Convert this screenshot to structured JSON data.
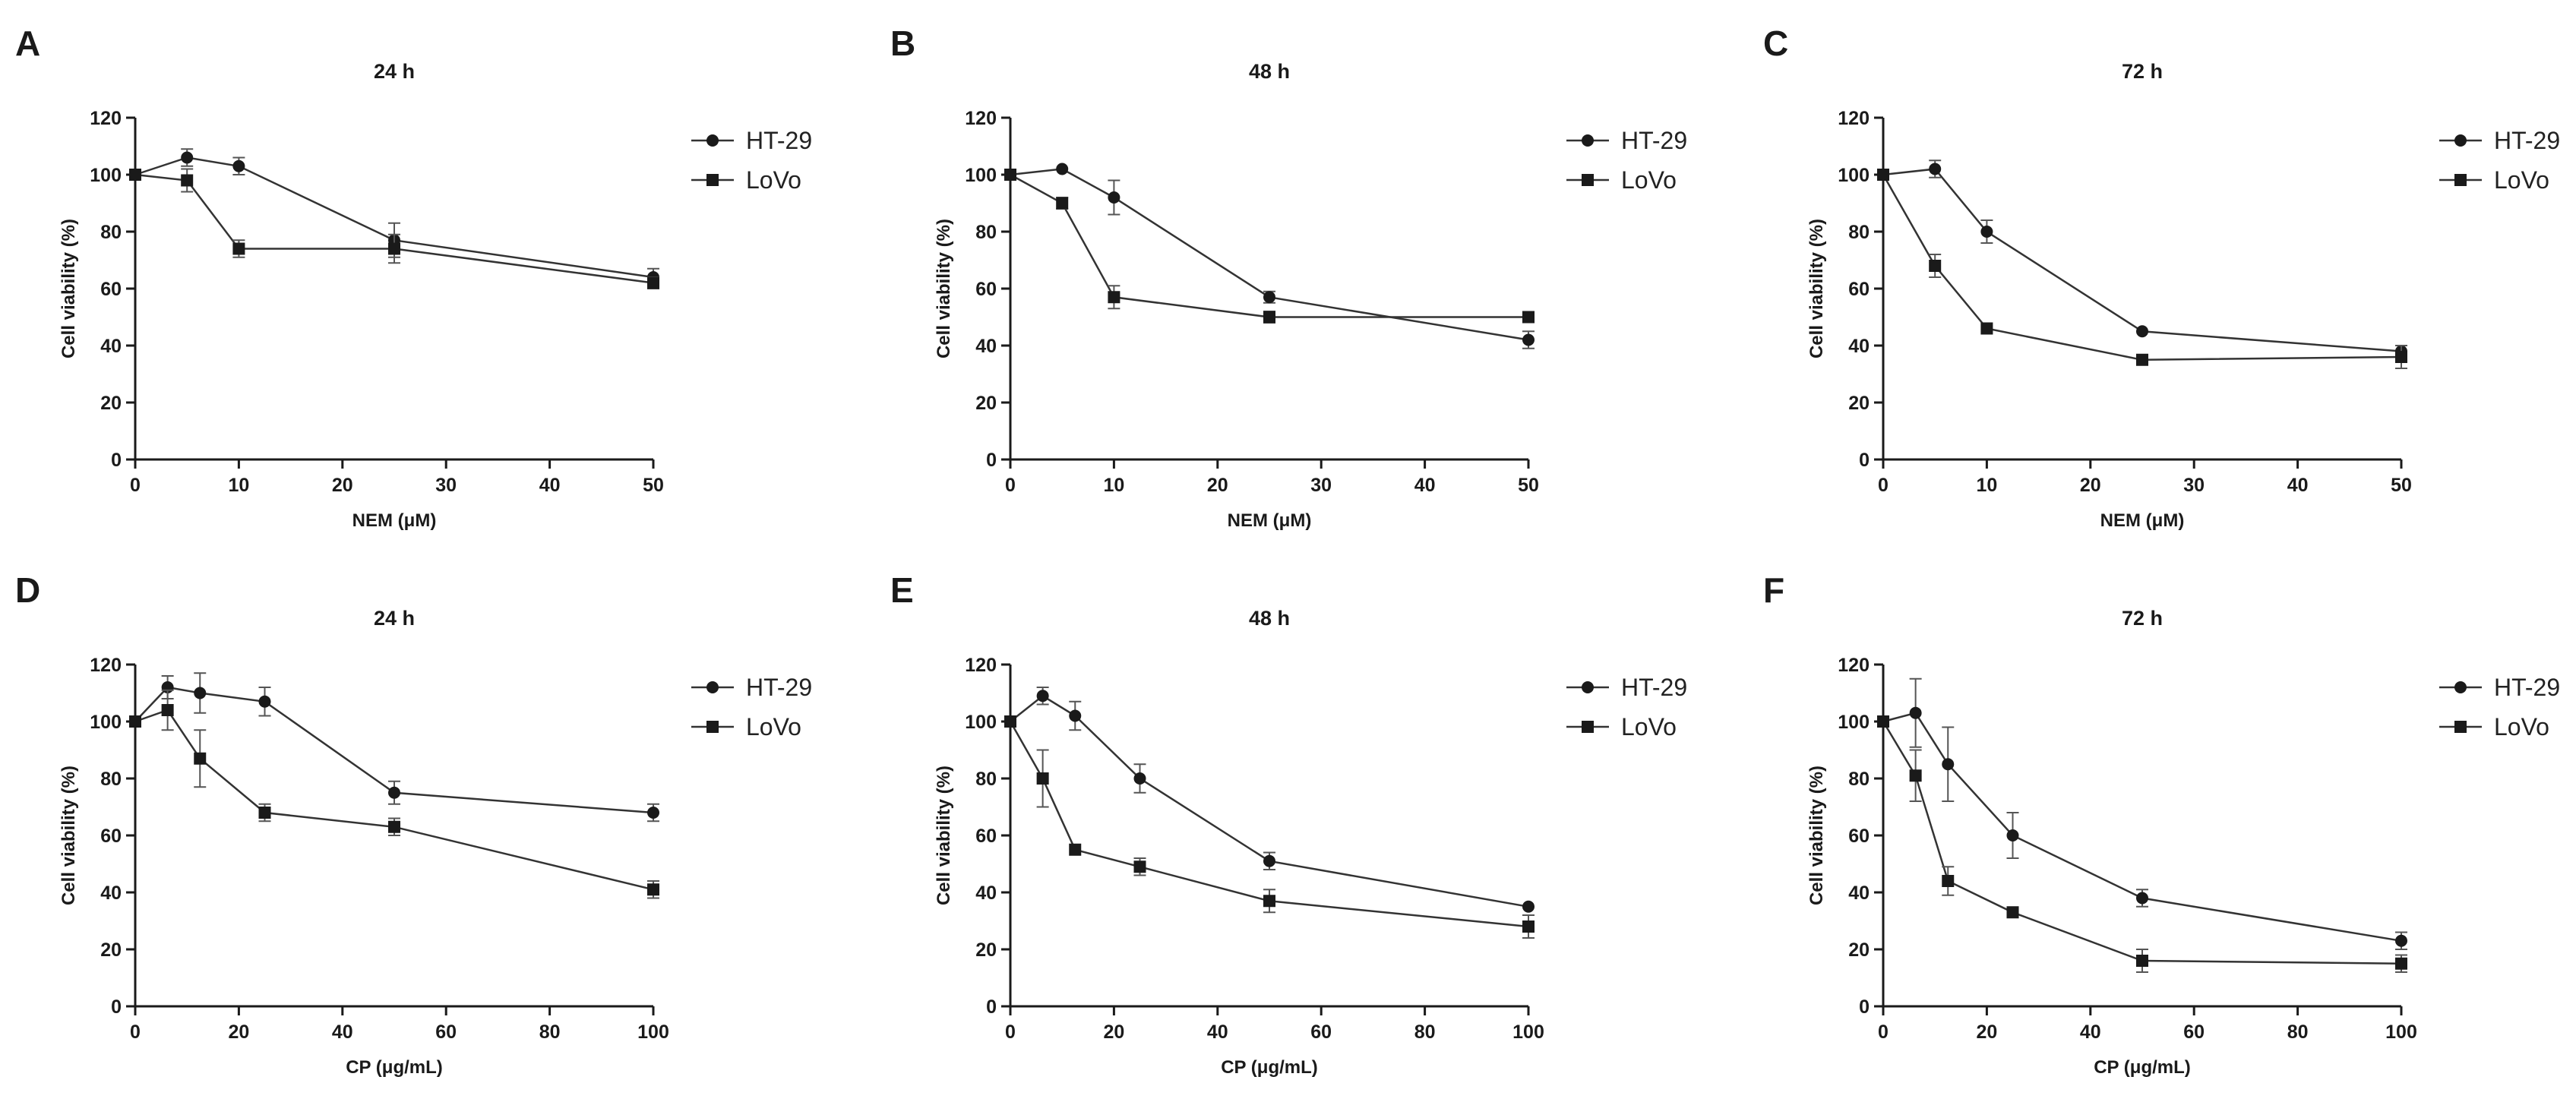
{
  "colors": {
    "line": "#333333",
    "marker": "#1a1a1a",
    "error_bar": "#555555",
    "axis": "#1a1a1a"
  },
  "chart_data": [
    {
      "panel": "A",
      "type": "line",
      "title": "24 h",
      "xlabel": "NEM (μM)",
      "ylabel": "Cell viability (%)",
      "xlim": [
        0,
        50
      ],
      "ylim": [
        0,
        120
      ],
      "xticks": [
        "0",
        "10",
        "20",
        "30",
        "40",
        "50"
      ],
      "yticks": [
        "0",
        "20",
        "40",
        "60",
        "80",
        "100",
        "120"
      ],
      "legend_position": "right",
      "series": [
        {
          "name": "HT-29",
          "marker": "circle",
          "x": [
            0,
            5,
            10,
            25,
            50
          ],
          "y": [
            100,
            106,
            103,
            77,
            64
          ],
          "err": [
            1,
            3,
            3,
            6,
            3
          ]
        },
        {
          "name": "LoVo",
          "marker": "square",
          "x": [
            0,
            5,
            10,
            25,
            50
          ],
          "y": [
            100,
            98,
            74,
            74,
            62
          ],
          "err": [
            1,
            4,
            3,
            5,
            2
          ]
        }
      ]
    },
    {
      "panel": "B",
      "type": "line",
      "title": "48 h",
      "xlabel": "NEM (μM)",
      "ylabel": "Cell viability (%)",
      "xlim": [
        0,
        50
      ],
      "ylim": [
        0,
        120
      ],
      "xticks": [
        "0",
        "10",
        "20",
        "30",
        "40",
        "50"
      ],
      "yticks": [
        "0",
        "20",
        "40",
        "60",
        "80",
        "100",
        "120"
      ],
      "legend_position": "right",
      "series": [
        {
          "name": "HT-29",
          "marker": "circle",
          "x": [
            0,
            5,
            10,
            25,
            50
          ],
          "y": [
            100,
            102,
            92,
            57,
            42
          ],
          "err": [
            1,
            1,
            6,
            2,
            3
          ]
        },
        {
          "name": "LoVo",
          "marker": "square",
          "x": [
            0,
            5,
            10,
            25,
            50
          ],
          "y": [
            100,
            90,
            57,
            50,
            50
          ],
          "err": [
            1,
            2,
            4,
            2,
            1
          ]
        }
      ]
    },
    {
      "panel": "C",
      "type": "line",
      "title": "72 h",
      "xlabel": "NEM (μM)",
      "ylabel": "Cell viability (%)",
      "xlim": [
        0,
        50
      ],
      "ylim": [
        0,
        120
      ],
      "xticks": [
        "0",
        "10",
        "20",
        "30",
        "40",
        "50"
      ],
      "yticks": [
        "0",
        "20",
        "40",
        "60",
        "80",
        "100",
        "120"
      ],
      "legend_position": "right",
      "series": [
        {
          "name": "HT-29",
          "marker": "circle",
          "x": [
            0,
            5,
            10,
            25,
            50
          ],
          "y": [
            100,
            102,
            80,
            45,
            38
          ],
          "err": [
            1,
            3,
            4,
            1,
            2
          ]
        },
        {
          "name": "LoVo",
          "marker": "square",
          "x": [
            0,
            5,
            10,
            25,
            50
          ],
          "y": [
            100,
            68,
            46,
            35,
            36
          ],
          "err": [
            1,
            4,
            1,
            1,
            4
          ]
        }
      ]
    },
    {
      "panel": "D",
      "type": "line",
      "title": "24 h",
      "xlabel": "CP (μg/mL)",
      "ylabel": "Cell viability (%)",
      "xlim": [
        0,
        100
      ],
      "ylim": [
        0,
        120
      ],
      "xticks": [
        "0",
        "20",
        "40",
        "60",
        "80",
        "100"
      ],
      "yticks": [
        "0",
        "20",
        "40",
        "60",
        "80",
        "100",
        "120"
      ],
      "legend_position": "right",
      "series": [
        {
          "name": "HT-29",
          "marker": "circle",
          "x": [
            0,
            6.25,
            12.5,
            25,
            50,
            100
          ],
          "y": [
            100,
            112,
            110,
            107,
            75,
            68
          ],
          "err": [
            1,
            4,
            7,
            5,
            4,
            3
          ]
        },
        {
          "name": "LoVo",
          "marker": "square",
          "x": [
            0,
            6.25,
            12.5,
            25,
            50,
            100
          ],
          "y": [
            100,
            104,
            87,
            68,
            63,
            41
          ],
          "err": [
            1,
            7,
            10,
            3,
            3,
            3
          ]
        }
      ]
    },
    {
      "panel": "E",
      "type": "line",
      "title": "48 h",
      "xlabel": "CP (μg/mL)",
      "ylabel": "Cell viability (%)",
      "xlim": [
        0,
        100
      ],
      "ylim": [
        0,
        120
      ],
      "xticks": [
        "0",
        "20",
        "40",
        "60",
        "80",
        "100"
      ],
      "yticks": [
        "0",
        "20",
        "40",
        "60",
        "80",
        "100",
        "120"
      ],
      "legend_position": "right",
      "series": [
        {
          "name": "HT-29",
          "marker": "circle",
          "x": [
            0,
            6.25,
            12.5,
            25,
            50,
            100
          ],
          "y": [
            100,
            109,
            102,
            80,
            51,
            35
          ],
          "err": [
            1,
            3,
            5,
            5,
            3,
            1
          ]
        },
        {
          "name": "LoVo",
          "marker": "square",
          "x": [
            0,
            6.25,
            12.5,
            25,
            50,
            100
          ],
          "y": [
            100,
            80,
            55,
            49,
            37,
            28
          ],
          "err": [
            1,
            10,
            1,
            3,
            4,
            4
          ]
        }
      ]
    },
    {
      "panel": "F",
      "type": "line",
      "title": "72 h",
      "xlabel": "CP (μg/mL)",
      "ylabel": "Cell viability (%)",
      "xlim": [
        0,
        100
      ],
      "ylim": [
        0,
        120
      ],
      "xticks": [
        "0",
        "20",
        "40",
        "60",
        "80",
        "100"
      ],
      "yticks": [
        "0",
        "20",
        "40",
        "60",
        "80",
        "100",
        "120"
      ],
      "legend_position": "right",
      "series": [
        {
          "name": "HT-29",
          "marker": "circle",
          "x": [
            0,
            6.25,
            12.5,
            25,
            50,
            100
          ],
          "y": [
            100,
            103,
            85,
            60,
            38,
            23
          ],
          "err": [
            1,
            12,
            13,
            8,
            3,
            3
          ]
        },
        {
          "name": "LoVo",
          "marker": "square",
          "x": [
            0,
            6.25,
            12.5,
            25,
            50,
            100
          ],
          "y": [
            100,
            81,
            44,
            33,
            16,
            15
          ],
          "err": [
            1,
            9,
            5,
            1,
            4,
            3
          ]
        }
      ]
    }
  ]
}
